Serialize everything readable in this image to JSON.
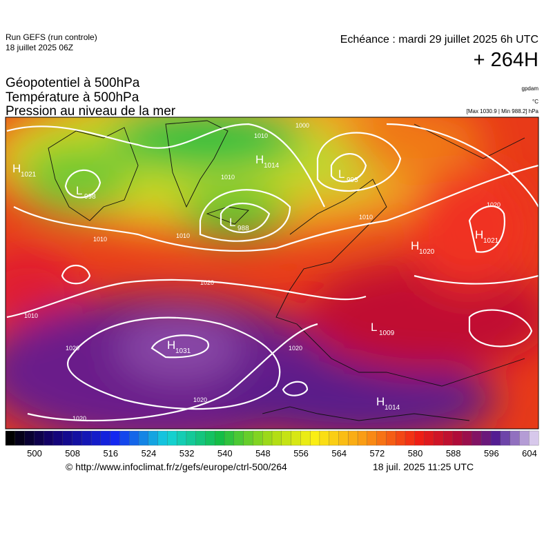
{
  "header": {
    "run": "Run GEFS (run controle)",
    "date": "18 juillet 2025 06Z",
    "echeance": "Echéance : mardi 29 juillet 2025 6h UTC",
    "lead": "+ 264H",
    "titles": [
      "Géopotentiel à 500hPa",
      "Température à 500hPa",
      "Pression au niveau de la mer"
    ],
    "units": [
      "gpdam",
      "°C",
      "[Max 1030.9 | Min 988.2] hPa"
    ]
  },
  "map": {
    "centers": [
      {
        "kind": "H",
        "value": "1021"
      },
      {
        "kind": "L",
        "value": "998"
      },
      {
        "kind": "H",
        "value": "1014"
      },
      {
        "kind": "L",
        "value": "993"
      },
      {
        "kind": "L",
        "value": "988"
      },
      {
        "kind": "H",
        "value": "1020"
      },
      {
        "kind": "H",
        "value": "1021"
      },
      {
        "kind": "H",
        "value": "1031"
      },
      {
        "kind": "L",
        "value": "1009"
      },
      {
        "kind": "H",
        "value": "1014"
      }
    ],
    "isobar_labels": [
      "1010",
      "1000",
      "1010",
      "1010",
      "1010",
      "1010",
      "1020",
      "1020",
      "1010",
      "1020",
      "1020",
      "1020",
      "1020"
    ]
  },
  "colorbar": {
    "ticks": [
      "500",
      "508",
      "516",
      "524",
      "532",
      "540",
      "548",
      "556",
      "564",
      "572",
      "580",
      "588",
      "596",
      "604"
    ]
  },
  "footer": {
    "url": "© http://www.infoclimat.fr/z/gefs/europe/ctrl-500/264",
    "time": "18 juil. 2025 11:25 UTC"
  }
}
